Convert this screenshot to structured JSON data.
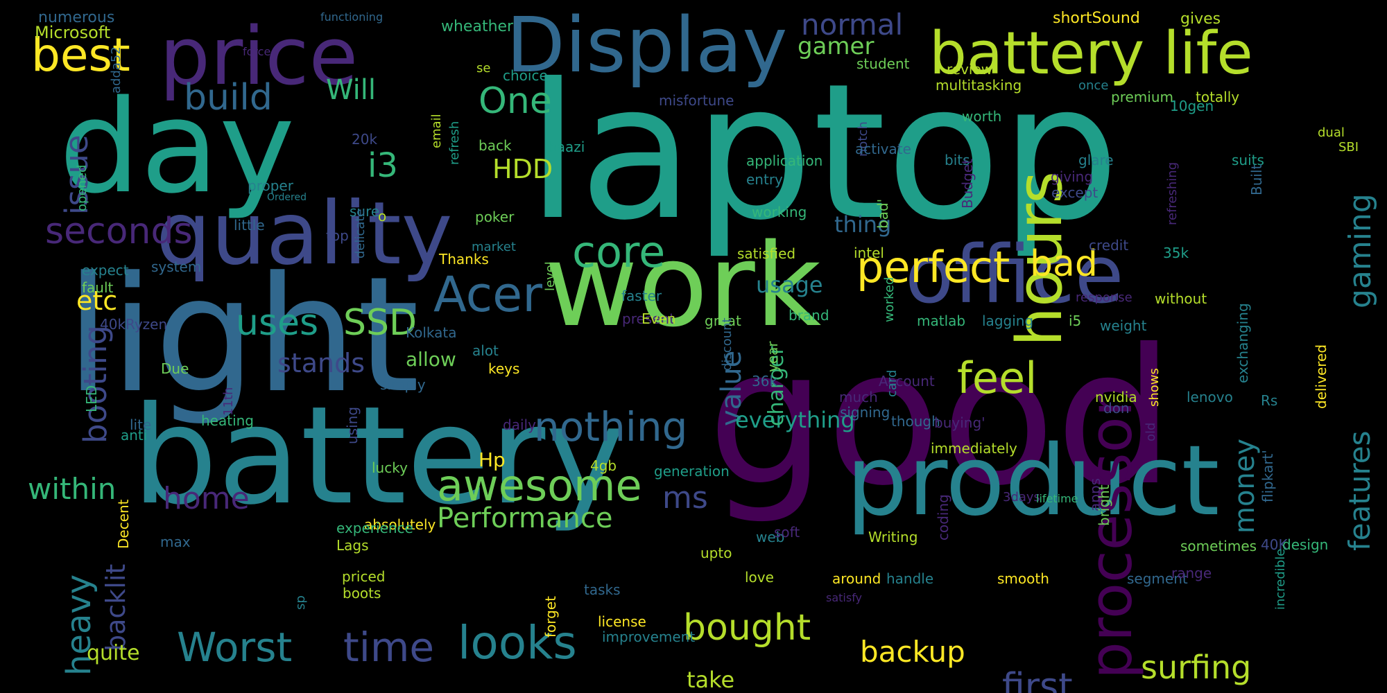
{
  "background": "#000000",
  "palette": [
    "#440154",
    "#482878",
    "#3e4989",
    "#31688e",
    "#26828e",
    "#1f9e89",
    "#35b779",
    "#6ece58",
    "#b5de2b",
    "#fde725"
  ],
  "words": [
    {
      "text": "laptop",
      "color": "#1f9e89"
    },
    {
      "text": "good",
      "color": "#440154"
    },
    {
      "text": "light",
      "color": "#31688e"
    },
    {
      "text": "battery",
      "color": "#26828e"
    },
    {
      "text": "work",
      "color": "#6ece58"
    },
    {
      "text": "day",
      "color": "#1f9e89"
    },
    {
      "text": "product",
      "color": "#26828e"
    },
    {
      "text": "quality",
      "color": "#3e4989"
    },
    {
      "text": "office",
      "color": "#3e4989"
    },
    {
      "text": "price",
      "color": "#482878"
    },
    {
      "text": "Display",
      "color": "#31688e"
    },
    {
      "text": "battery life",
      "color": "#b5de2b"
    },
    {
      "text": "hours",
      "color": "#b5de2b"
    },
    {
      "text": "processor",
      "color": "#440154"
    },
    {
      "text": "perfect",
      "color": "#fde725"
    },
    {
      "text": "Acer",
      "color": "#31688e"
    },
    {
      "text": "awesome",
      "color": "#6ece58"
    },
    {
      "text": "looks",
      "color": "#26828e"
    },
    {
      "text": "nothing",
      "color": "#31688e"
    },
    {
      "text": "feel",
      "color": "#b5de2b"
    },
    {
      "text": "core",
      "color": "#35b779"
    },
    {
      "text": "best",
      "color": "#fde725"
    },
    {
      "text": "build",
      "color": "#31688e"
    },
    {
      "text": "seconds",
      "color": "#482878"
    },
    {
      "text": "uses",
      "color": "#1f9e89"
    },
    {
      "text": "SSD",
      "color": "#6ece58"
    },
    {
      "text": "Worst",
      "color": "#26828e"
    },
    {
      "text": "time",
      "color": "#3e4989"
    },
    {
      "text": "bought",
      "color": "#b5de2b"
    },
    {
      "text": "first",
      "color": "#3e4989"
    },
    {
      "text": "surfing",
      "color": "#b5de2b"
    },
    {
      "text": "backup",
      "color": "#fde725"
    },
    {
      "text": "heavy",
      "color": "#26828e"
    },
    {
      "text": "booting",
      "color": "#3e4989"
    },
    {
      "text": "issue",
      "color": "#3e4989"
    },
    {
      "text": "gaming",
      "color": "#26828e"
    },
    {
      "text": "features",
      "color": "#26828e"
    },
    {
      "text": "bad",
      "color": "#fde725"
    },
    {
      "text": "One",
      "color": "#35b779"
    },
    {
      "text": "i3",
      "color": "#35b779"
    },
    {
      "text": "HDD",
      "color": "#b5de2b"
    },
    {
      "text": "value",
      "color": "#31688e"
    },
    {
      "text": "normal",
      "color": "#3e4989"
    },
    {
      "text": "gamer",
      "color": "#6ece58"
    },
    {
      "text": "Will",
      "color": "#35b779"
    },
    {
      "text": "stands",
      "color": "#3e4989"
    },
    {
      "text": "usage",
      "color": "#26828e"
    },
    {
      "text": "home",
      "color": "#482878"
    },
    {
      "text": "within",
      "color": "#35b779"
    },
    {
      "text": "Performance",
      "color": "#6ece58"
    },
    {
      "text": "ms",
      "color": "#3e4989"
    },
    {
      "text": "money",
      "color": "#26828e"
    },
    {
      "text": "everything",
      "color": "#1f9e89"
    },
    {
      "text": "etc",
      "color": "#fde725"
    },
    {
      "text": "backlit",
      "color": "#3e4989"
    },
    {
      "text": "thing",
      "color": "#31688e"
    },
    {
      "text": "charger",
      "color": "#35b779"
    },
    {
      "text": "allow",
      "color": "#6ece58"
    },
    {
      "text": "quite",
      "color": "#b5de2b"
    },
    {
      "text": "take",
      "color": "#b5de2b"
    },
    {
      "text": "Hp",
      "color": "#fde725"
    },
    {
      "text": "numerous",
      "color": "#31688e"
    },
    {
      "text": "Microsoft",
      "color": "#b5de2b"
    },
    {
      "text": "functioning",
      "color": "#31688e"
    },
    {
      "text": "wheather",
      "color": "#35b779"
    },
    {
      "text": "review",
      "color": "#b5de2b"
    },
    {
      "text": "shortSound",
      "color": "#fde725"
    },
    {
      "text": "gives",
      "color": "#b5de2b"
    },
    {
      "text": "force",
      "color": "#482878"
    },
    {
      "text": "se",
      "color": "#b5de2b"
    },
    {
      "text": "choice",
      "color": "#1f9e89"
    },
    {
      "text": "student",
      "color": "#6ece58"
    },
    {
      "text": "multitasking",
      "color": "#b5de2b"
    },
    {
      "text": "once",
      "color": "#26828e"
    },
    {
      "text": "premium",
      "color": "#6ece58"
    },
    {
      "text": "totally",
      "color": "#b5de2b"
    },
    {
      "text": "adda52",
      "color": "#31688e"
    },
    {
      "text": "opened",
      "color": "#35b779"
    },
    {
      "text": "20k",
      "color": "#3e4989"
    },
    {
      "text": "misfortune",
      "color": "#3e4989"
    },
    {
      "text": "10gen",
      "color": "#1f9e89"
    },
    {
      "text": "worth",
      "color": "#35b779"
    },
    {
      "text": "dual",
      "color": "#b5de2b"
    },
    {
      "text": "back",
      "color": "#6ece58"
    },
    {
      "text": "baazi",
      "color": "#1f9e89"
    },
    {
      "text": "email",
      "color": "#b5de2b"
    },
    {
      "text": "refresh",
      "color": "#1f9e89"
    },
    {
      "text": "notch",
      "color": "#3e4989"
    },
    {
      "text": "activate",
      "color": "#31688e"
    },
    {
      "text": "refreshing",
      "color": "#482878"
    },
    {
      "text": "SBI",
      "color": "#b5de2b"
    },
    {
      "text": "application",
      "color": "#35b779"
    },
    {
      "text": "entry",
      "color": "#26828e"
    },
    {
      "text": "bits",
      "color": "#26828e"
    },
    {
      "text": "glare",
      "color": "#26828e"
    },
    {
      "text": "suits",
      "color": "#1f9e89"
    },
    {
      "text": "giving",
      "color": "#482878"
    },
    {
      "text": "except",
      "color": "#3e4989"
    },
    {
      "text": "Ordered",
      "color": "#26828e"
    },
    {
      "text": "proper",
      "color": "#26828e"
    },
    {
      "text": "sure",
      "color": "#26828e"
    },
    {
      "text": "o",
      "color": "#b5de2b"
    },
    {
      "text": "poker",
      "color": "#6ece58"
    },
    {
      "text": "working",
      "color": "#35b779"
    },
    {
      "text": "Budget",
      "color": "#482878"
    },
    {
      "text": "bad'",
      "color": "#6ece58"
    },
    {
      "text": "Built",
      "color": "#31688e"
    },
    {
      "text": "little",
      "color": "#31688e"
    },
    {
      "text": "top",
      "color": "#3e4989"
    },
    {
      "text": "credit",
      "color": "#3e4989"
    },
    {
      "text": "Thanks",
      "color": "#fde725"
    },
    {
      "text": "market",
      "color": "#26828e"
    },
    {
      "text": "system",
      "color": "#31688e"
    },
    {
      "text": "delicate",
      "color": "#31688e"
    },
    {
      "text": "satisfied",
      "color": "#b5de2b"
    },
    {
      "text": "intel",
      "color": "#b5de2b"
    },
    {
      "text": "35k",
      "color": "#1f9e89"
    },
    {
      "text": "expect",
      "color": "#26828e"
    },
    {
      "text": "fault",
      "color": "#6ece58"
    },
    {
      "text": "level",
      "color": "#6ece58"
    },
    {
      "text": "faster",
      "color": "#26828e"
    },
    {
      "text": "response",
      "color": "#482878"
    },
    {
      "text": "without",
      "color": "#b5de2b"
    },
    {
      "text": "weight",
      "color": "#26828e"
    },
    {
      "text": "present",
      "color": "#482878"
    },
    {
      "text": "Even",
      "color": "#b5de2b"
    },
    {
      "text": "great",
      "color": "#6ece58"
    },
    {
      "text": "brand",
      "color": "#35b779"
    },
    {
      "text": "matlab",
      "color": "#35b779"
    },
    {
      "text": "lagging",
      "color": "#26828e"
    },
    {
      "text": "i5",
      "color": "#6ece58"
    },
    {
      "text": "exchanging",
      "color": "#26828e"
    },
    {
      "text": "40kRyzen",
      "color": "#3e4989"
    },
    {
      "text": "Kolkata",
      "color": "#31688e"
    },
    {
      "text": "alot",
      "color": "#26828e"
    },
    {
      "text": "worked",
      "color": "#35b779"
    },
    {
      "text": "Due",
      "color": "#6ece58"
    },
    {
      "text": "keys",
      "color": "#fde725"
    },
    {
      "text": "simply",
      "color": "#31688e"
    },
    {
      "text": "discount",
      "color": "#31688e"
    },
    {
      "text": "year",
      "color": "#6ece58"
    },
    {
      "text": "Account",
      "color": "#482878"
    },
    {
      "text": "36k",
      "color": "#31688e"
    },
    {
      "text": "much",
      "color": "#482878"
    },
    {
      "text": "nvidia",
      "color": "#b5de2b"
    },
    {
      "text": "lenovo",
      "color": "#26828e"
    },
    {
      "text": "don",
      "color": "#3e4989"
    },
    {
      "text": "Rs",
      "color": "#26828e"
    },
    {
      "text": "card",
      "color": "#26828e"
    },
    {
      "text": "heating",
      "color": "#35b779"
    },
    {
      "text": "signing",
      "color": "#31688e"
    },
    {
      "text": "LED",
      "color": "#35b779"
    },
    {
      "text": "11th",
      "color": "#482878"
    },
    {
      "text": "daily",
      "color": "#482878"
    },
    {
      "text": "shows",
      "color": "#fde725"
    },
    {
      "text": "lite",
      "color": "#31688e"
    },
    {
      "text": "though",
      "color": "#31688e"
    },
    {
      "text": "buying'",
      "color": "#482878"
    },
    {
      "text": "delivered",
      "color": "#fde725"
    },
    {
      "text": "anti",
      "color": "#1f9e89"
    },
    {
      "text": "using",
      "color": "#3e4989"
    },
    {
      "text": "immediately",
      "color": "#b5de2b"
    },
    {
      "text": "old",
      "color": "#482878"
    },
    {
      "text": "lucky",
      "color": "#6ece58"
    },
    {
      "text": "4gb",
      "color": "#b5de2b"
    },
    {
      "text": "generation",
      "color": "#1f9e89"
    },
    {
      "text": "apps",
      "color": "#482878"
    },
    {
      "text": "3days",
      "color": "#482878"
    },
    {
      "text": "lifetime",
      "color": "#35b779"
    },
    {
      "text": "flipkart'",
      "color": "#31688e"
    },
    {
      "text": "absolutely",
      "color": "#fde725"
    },
    {
      "text": "experience",
      "color": "#35b779"
    },
    {
      "text": "bright",
      "color": "#6ece58"
    },
    {
      "text": "max",
      "color": "#31688e"
    },
    {
      "text": "Lags",
      "color": "#b5de2b"
    },
    {
      "text": "web",
      "color": "#26828e"
    },
    {
      "text": "Writing",
      "color": "#b5de2b"
    },
    {
      "text": "coding",
      "color": "#482878"
    },
    {
      "text": "Decent",
      "color": "#fde725"
    },
    {
      "text": "upto",
      "color": "#b5de2b"
    },
    {
      "text": "soft",
      "color": "#482878"
    },
    {
      "text": "40K",
      "color": "#3e4989"
    },
    {
      "text": "design",
      "color": "#35b779"
    },
    {
      "text": "sometimes",
      "color": "#6ece58"
    },
    {
      "text": "priced",
      "color": "#b5de2b"
    },
    {
      "text": "around",
      "color": "#fde725"
    },
    {
      "text": "handle",
      "color": "#26828e"
    },
    {
      "text": "smooth",
      "color": "#fde725"
    },
    {
      "text": "segment",
      "color": "#31688e"
    },
    {
      "text": "range",
      "color": "#482878"
    },
    {
      "text": "incredible",
      "color": "#1f9e89"
    },
    {
      "text": "boots",
      "color": "#b5de2b"
    },
    {
      "text": "forget",
      "color": "#fde725"
    },
    {
      "text": "love",
      "color": "#b5de2b"
    },
    {
      "text": "sp",
      "color": "#26828e"
    },
    {
      "text": "tasks",
      "color": "#31688e"
    },
    {
      "text": "satisfy",
      "color": "#482878"
    },
    {
      "text": "license",
      "color": "#fde725"
    },
    {
      "text": "improvement",
      "color": "#26828e"
    }
  ]
}
